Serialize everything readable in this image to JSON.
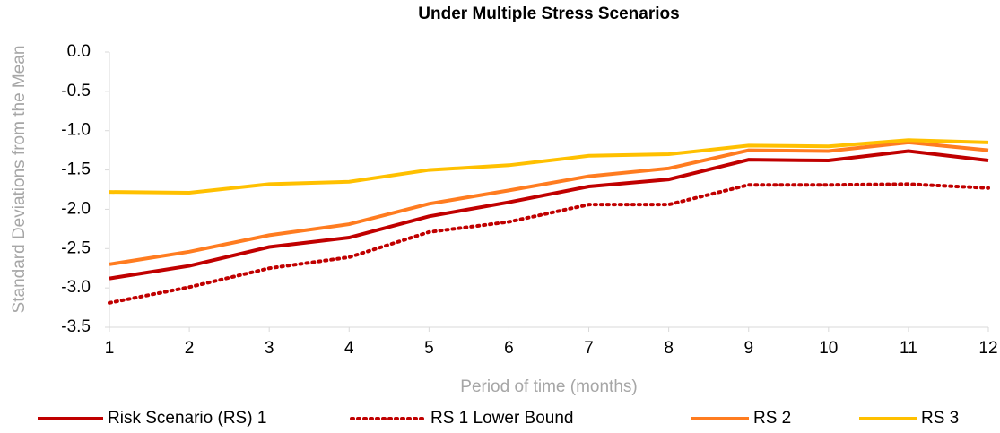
{
  "chart_data": {
    "type": "line",
    "title": "Under Multiple Stress Scenarios",
    "x_label": "Period of time (months)",
    "y_label": "Standard Deviations from the Mean",
    "x": [
      1,
      2,
      3,
      4,
      5,
      6,
      7,
      8,
      9,
      10,
      11,
      12
    ],
    "xlim": [
      1,
      12
    ],
    "xticks": [
      1,
      2,
      3,
      4,
      5,
      6,
      7,
      8,
      9,
      10,
      11,
      12
    ],
    "ylim": [
      -3.5,
      0
    ],
    "yticks": [
      {
        "value": 0,
        "label": "0.0"
      },
      -0.5,
      {
        "value": -1,
        "label": "-1.0"
      },
      -1.5,
      {
        "value": -2,
        "label": "-2.0"
      },
      -2.5,
      {
        "value": -3,
        "label": "-3.0"
      },
      -3.5
    ],
    "grid": false,
    "legend": "bottom",
    "series": [
      {
        "name": "Risk Scenario (RS) 1",
        "color": "#c00000",
        "line_style": "solid",
        "values": [
          -2.88,
          -2.72,
          -2.48,
          -2.36,
          -2.09,
          -1.91,
          -1.71,
          -1.62,
          -1.37,
          -1.38,
          -1.26,
          -1.38
        ]
      },
      {
        "name": "RS 1 Lower Bound",
        "color": "#c00000",
        "line_style": "dotted",
        "values": [
          -3.19,
          -2.99,
          -2.75,
          -2.61,
          -2.29,
          -2.16,
          -1.94,
          -1.94,
          -1.69,
          -1.69,
          -1.68,
          -1.73
        ]
      },
      {
        "name": "RS 2",
        "color": "#ff7c20",
        "line_style": "solid",
        "values": [
          -2.7,
          -2.54,
          -2.33,
          -2.19,
          -1.93,
          -1.76,
          -1.58,
          -1.48,
          -1.25,
          -1.26,
          -1.15,
          -1.25
        ]
      },
      {
        "name": "RS 3",
        "color": "#ffc000",
        "line_style": "solid",
        "values": [
          -1.78,
          -1.79,
          -1.68,
          -1.65,
          -1.5,
          -1.44,
          -1.32,
          -1.3,
          -1.19,
          -1.2,
          -1.12,
          -1.15
        ]
      }
    ]
  }
}
